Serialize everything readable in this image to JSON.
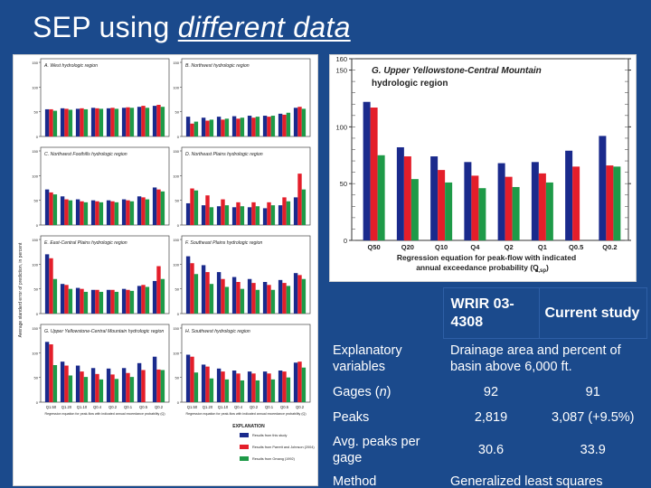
{
  "slide": {
    "title_prefix": "SEP using ",
    "title_emphasis": "different data"
  },
  "colors": {
    "background": "#1b4a8c",
    "series_this_study": "#1a2a8c",
    "series_wrir": "#e41e2a",
    "series_omang": "#1e9a48"
  },
  "small_multiples": {
    "panels": [
      {
        "label": "A. West hydrologic region",
        "ticks": [
          "150",
          "100",
          "50",
          "0"
        ]
      },
      {
        "label": "B. Northwest hydrologic region",
        "ticks": [
          "150",
          "100",
          "50",
          "0"
        ]
      },
      {
        "label": "C. Northwest Foothills hydrologic region",
        "ticks": [
          "150",
          "100",
          "50",
          "0"
        ]
      },
      {
        "label": "D. Northeast Plains hydrologic region",
        "ticks": [
          "150",
          "100",
          "50",
          "0"
        ]
      },
      {
        "label": "E. East-Central Plains hydrologic region",
        "ticks": [
          "150",
          "100",
          "50",
          "0"
        ]
      },
      {
        "label": "F. Southeast Plains hydrologic region",
        "ticks": [
          "150",
          "100",
          "50",
          "0"
        ]
      },
      {
        "label": "G. Upper Yellowstone-Central Mountain hydrologic region",
        "ticks": [
          "150",
          "100",
          "50",
          "0"
        ]
      },
      {
        "label": "H. Southwest hydrologic region",
        "ticks": [
          "150",
          "100",
          "50",
          "0"
        ]
      }
    ],
    "y_axis_label": "Average standard error of prediction, in percent",
    "x_labels": [
      "Q1.50",
      "Q1.20",
      "Q1.10",
      "Q0.4",
      "Q0.2",
      "Q0.1",
      "Q0.5",
      "Q0.2"
    ],
    "x_axis_caption_left": "Regression equation for peak-flow with indicated annual exceedance probability (Q)",
    "x_axis_caption_right": "Regression equation for peak-flow with indicated annual exceedance probability (Q)",
    "legend": {
      "title": "EXPLANATION",
      "entries": [
        "Results from this study",
        "Results from Parrett and Johnson (2004)",
        "Results from Omang (1992)"
      ]
    }
  },
  "chart_data": {
    "type": "bar",
    "title": "G. Upper Yellowstone-Central Mountain hydrologic region",
    "categories": [
      "Q50",
      "Q20",
      "Q10",
      "Q4",
      "Q2",
      "Q1",
      "Q0.5",
      "Q0.2"
    ],
    "series": [
      {
        "name": "Results from this study",
        "values": [
          122,
          82,
          74,
          69,
          68,
          69,
          79,
          92
        ]
      },
      {
        "name": "Results from Parrett and Johnson (2004)",
        "values": [
          117,
          74,
          62,
          57,
          56,
          59,
          65,
          66
        ]
      },
      {
        "name": "Results from Omang (1992)",
        "values": [
          75,
          54,
          51,
          46,
          47,
          51,
          0,
          65
        ]
      }
    ],
    "yticks": [
      "0",
      "50",
      "100",
      "150",
      "160"
    ],
    "ylim": [
      0,
      160
    ],
    "xlabel_line1": "Regression equation for peak-flow with indicated",
    "xlabel_line2": "annual exceedance probability (Q",
    "xlabel_subscript": "a,sp",
    "xlabel_end": ")"
  },
  "table": {
    "headers": [
      "WRIR 03-4308",
      "Current study"
    ],
    "rows": [
      {
        "label": "Explanatory variables",
        "span": "Drainage area and percent of basin above 6,000 ft."
      },
      {
        "label_prefix": "Gages (",
        "label_var": "n",
        "label_suffix": ")",
        "wrir": "92",
        "current": "91"
      },
      {
        "label": "Peaks",
        "wrir": "2,819",
        "current": "3,087 (+9.5%)"
      },
      {
        "label": "Avg. peaks per gage",
        "wrir": "30.6",
        "current": "33.9"
      },
      {
        "label": "Method",
        "span": "Generalized least squares"
      }
    ]
  }
}
